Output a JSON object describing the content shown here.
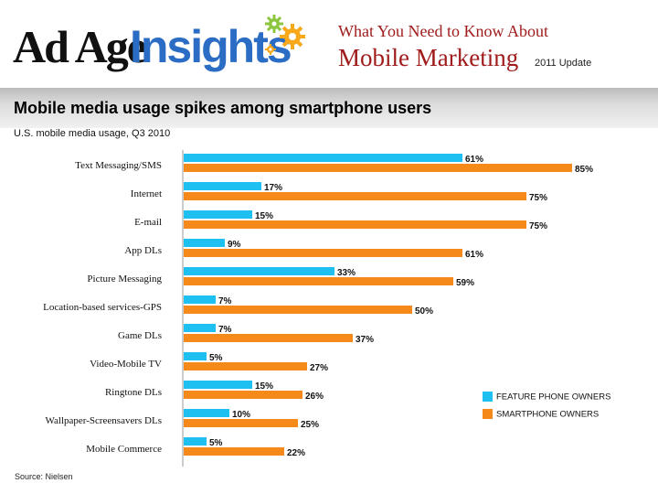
{
  "header": {
    "logo_text_part1": "Ad Age",
    "logo_text_part2": "Insights",
    "line1": "What You Need to Know About",
    "line2": "Mobile Marketing",
    "update": "2011 Update"
  },
  "colors": {
    "feature": "#1ec0f2",
    "smartphone": "#f58a1b",
    "brand_blue": "#2b6cc4",
    "header_red": "#a01c1c"
  },
  "chart_data": {
    "type": "bar",
    "orientation": "horizontal",
    "title": "Mobile media usage spikes among smartphone users",
    "subtitle": "U.S. mobile media usage, Q3 2010",
    "categories": [
      "Text Messaging/SMS",
      "Internet",
      "E-mail",
      "App DLs",
      "Picture Messaging",
      "Location-based services-GPS",
      "Game DLs",
      "Video-Mobile TV",
      "Ringtone DLs",
      "Wallpaper-Screensavers DLs",
      "Mobile Commerce"
    ],
    "series": [
      {
        "name": "FEATURE PHONE OWNERS",
        "values": [
          61,
          17,
          15,
          9,
          33,
          7,
          7,
          5,
          15,
          10,
          5
        ]
      },
      {
        "name": "SMARTPHONE OWNERS",
        "values": [
          85,
          75,
          75,
          61,
          59,
          50,
          37,
          27,
          26,
          25,
          22
        ]
      }
    ],
    "xlim": [
      0,
      100
    ],
    "legend_position": "right",
    "source": "Source: Nielsen"
  }
}
